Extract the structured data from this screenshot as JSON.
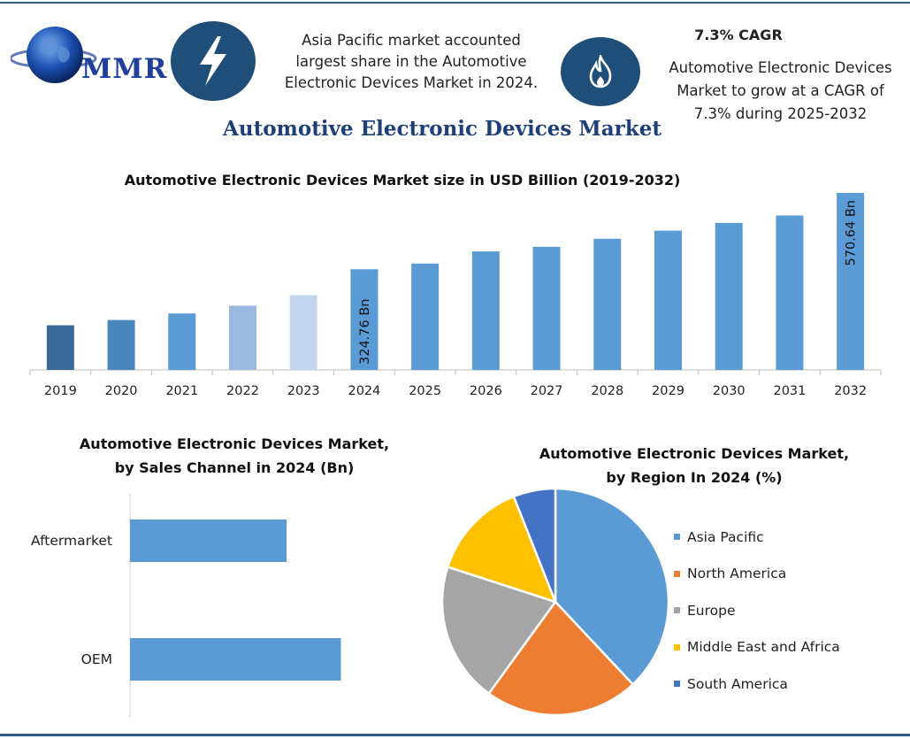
{
  "header": {
    "logo_text": "MMR",
    "highlight_1": "Asia Pacific market accounted largest share in the Automotive Electronic Devices Market in 2024.",
    "highlight_1_lines": [
      "Asia Pacific market accounted",
      "largest share in the Automotive",
      "Electronic Devices Market in 2024."
    ],
    "cagr_title": "7.3% CAGR",
    "highlight_2_lines": [
      "Automotive Electronic Devices",
      "Market to grow at a CAGR of",
      "7.3% during 2025-2032"
    ],
    "icons": [
      "globe-icon",
      "lightning-icon",
      "flame-icon"
    ]
  },
  "main_title": "Automotive Electronic Devices Market",
  "chart_data": [
    {
      "type": "bar",
      "title": "Automotive Electronic Devices Market size in USD Billion (2019-2032)",
      "categories": [
        "2019",
        "2020",
        "2021",
        "2022",
        "2023",
        "2024",
        "2025",
        "2026",
        "2027",
        "2028",
        "2029",
        "2030",
        "2031",
        "2032"
      ],
      "values": [
        144,
        161,
        182,
        207,
        241,
        324.76,
        343,
        382,
        397,
        423,
        449,
        474,
        498,
        570.64
      ],
      "bar_colors": [
        "#3a6a99",
        "#4a87bd",
        "#5b9bd5",
        "#9ab9df",
        "#c3d6ee",
        "#5b9bd5",
        "#5b9bd5",
        "#5b9bd5",
        "#5b9bd5",
        "#5b9bd5",
        "#5b9bd5",
        "#5b9bd5",
        "#5b9bd5",
        "#5b9bd5"
      ],
      "data_labels": [
        {
          "category": "2024",
          "text": "324.76 Bn"
        },
        {
          "category": "2032",
          "text": "570.64 Bn"
        }
      ],
      "ylim": [
        0,
        570.64
      ],
      "grid": false
    },
    {
      "type": "bar",
      "orientation": "horizontal",
      "title_lines": [
        "Automotive Electronic Devices Market,",
        "by Sales Channel in 2024 (Bn)"
      ],
      "categories": [
        "Aftermarket",
        "OEM"
      ],
      "values": [
        118,
        159
      ],
      "color": "#5b9bd5",
      "xlim": [
        0,
        180
      ]
    },
    {
      "type": "pie",
      "title_lines": [
        "Automotive Electronic Devices Market,",
        "by Region In 2024 (%)"
      ],
      "categories": [
        "Asia Pacific",
        "North America",
        "Europe",
        "Middle East and Africa",
        "South America"
      ],
      "values": [
        38,
        22,
        20,
        14,
        6
      ],
      "colors": [
        "#5b9bd5",
        "#ed7d31",
        "#a5a5a5",
        "#ffc000",
        "#4472c4"
      ],
      "legend_position": "right"
    }
  ]
}
